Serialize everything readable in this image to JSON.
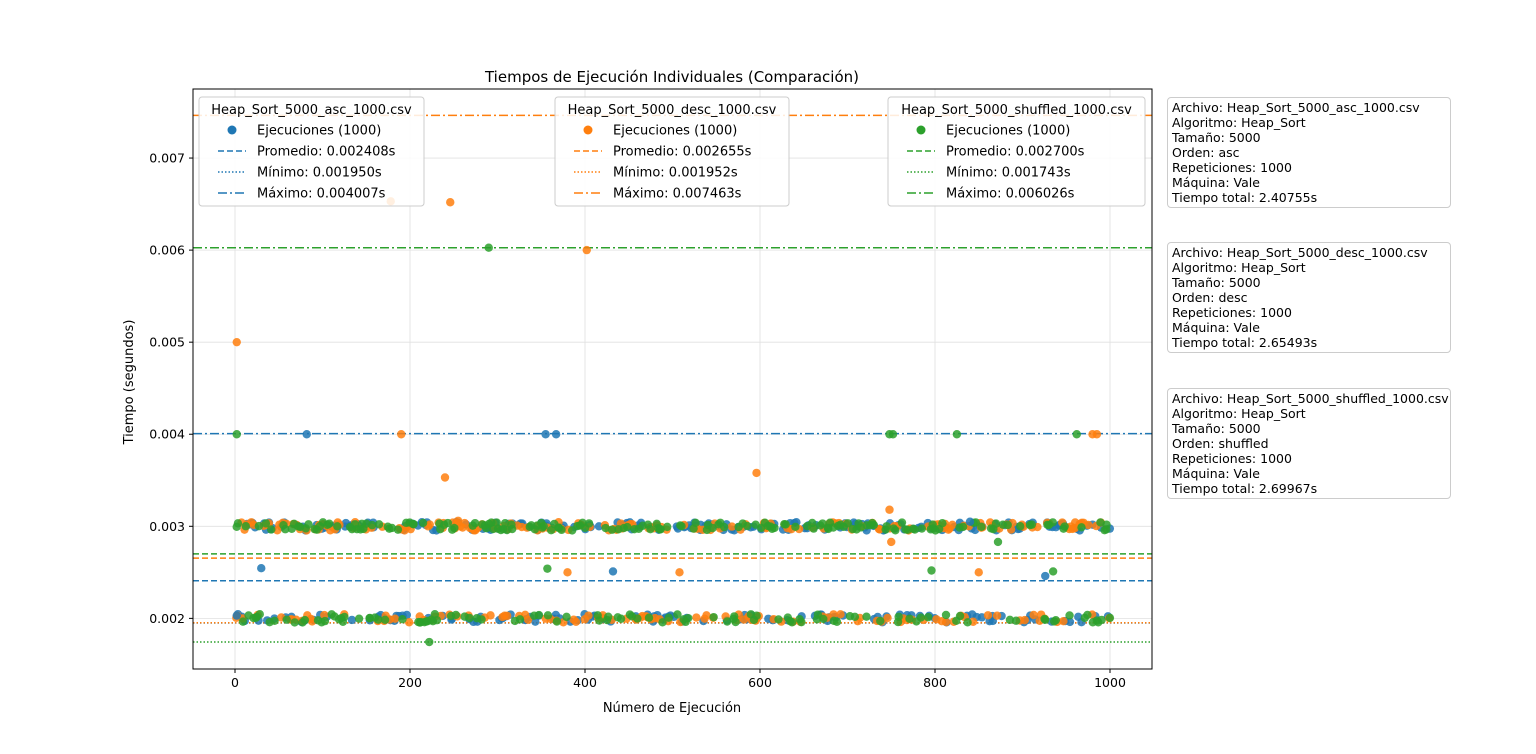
{
  "chart_data": {
    "type": "scatter",
    "title": "Tiempos de Ejecución Individuales (Comparación)",
    "xlabel": "Número de Ejecución",
    "ylabel": "Tiempo (segundos)",
    "xlim": [
      -48,
      1048
    ],
    "ylim": [
      0.00145,
      0.00775
    ],
    "xticks": [
      "0",
      "200",
      "400",
      "600",
      "800",
      "1000"
    ],
    "yticks": [
      "0.002",
      "0.003",
      "0.004",
      "0.005",
      "0.006",
      "0.007"
    ],
    "grid": true,
    "series": [
      {
        "legend_title": "Heap_Sort_5000_asc_1000.csv",
        "color": "#1f77b4",
        "points_label": "Ejecuciones (1000)",
        "mean_label": "Promedio: 0.002408s",
        "min_label": "Mínimo: 0.001950s",
        "max_label": "Máximo: 0.004007s",
        "mean": 0.002408,
        "min": 0.00195,
        "max": 0.004007,
        "outliers": [
          [
            2,
            0.00203
          ],
          [
            30,
            0.002545
          ],
          [
            82,
            0.004
          ],
          [
            355,
            0.004
          ],
          [
            367,
            0.004
          ],
          [
            432,
            0.00251
          ],
          [
            926,
            0.00246
          ],
          [
            840,
            0.00305
          ]
        ]
      },
      {
        "legend_title": "Heap_Sort_5000_desc_1000.csv",
        "color": "#ff7f0e",
        "points_label": "Ejecuciones (1000)",
        "mean_label": "Promedio: 0.002655s",
        "min_label": "Mínimo: 0.001952s",
        "max_label": "Máximo: 0.007463s",
        "mean": 0.002655,
        "min": 0.001952,
        "max": 0.007463,
        "outliers": [
          [
            2,
            0.005
          ],
          [
            178,
            0.00653
          ],
          [
            190,
            0.004
          ],
          [
            240,
            0.00353
          ],
          [
            246,
            0.00652
          ],
          [
            380,
            0.0025
          ],
          [
            402,
            0.006
          ],
          [
            508,
            0.0025
          ],
          [
            596,
            0.00358
          ],
          [
            748,
            0.00318
          ],
          [
            750,
            0.00283
          ],
          [
            850,
            0.0025
          ],
          [
            980,
            0.004
          ],
          [
            985,
            0.004
          ],
          [
            255,
            0.00306
          ]
        ]
      },
      {
        "legend_title": "Heap_Sort_5000_shuffled_1000.csv",
        "color": "#2ca02c",
        "points_label": "Ejecuciones (1000)",
        "mean_label": "Promedio: 0.002700s",
        "min_label": "Mínimo: 0.001743s",
        "max_label": "Máximo: 0.006026s",
        "mean": 0.0027,
        "min": 0.001743,
        "max": 0.006026,
        "outliers": [
          [
            2,
            0.004
          ],
          [
            222,
            0.001743
          ],
          [
            290,
            0.006026
          ],
          [
            357,
            0.00254
          ],
          [
            748,
            0.004
          ],
          [
            752,
            0.004
          ],
          [
            796,
            0.00252
          ],
          [
            825,
            0.004
          ],
          [
            872,
            0.00283
          ],
          [
            935,
            0.00251
          ],
          [
            962,
            0.004
          ]
        ]
      }
    ]
  },
  "info_boxes": [
    {
      "lines": [
        "Archivo: Heap_Sort_5000_asc_1000.csv",
        "Algoritmo: Heap_Sort",
        "Tamaño: 5000",
        "Orden: asc",
        "Repeticiones: 1000",
        "Máquina: Vale",
        "Tiempo total: 2.40755s"
      ]
    },
    {
      "lines": [
        "Archivo: Heap_Sort_5000_desc_1000.csv",
        "Algoritmo: Heap_Sort",
        "Tamaño: 5000",
        "Orden: desc",
        "Repeticiones: 1000",
        "Máquina: Vale",
        "Tiempo total: 2.65493s"
      ]
    },
    {
      "lines": [
        "Archivo: Heap_Sort_5000_shuffled_1000.csv",
        "Algoritmo: Heap_Sort",
        "Tamaño: 5000",
        "Orden: shuffled",
        "Repeticiones: 1000",
        "Máquina: Vale",
        "Tiempo total: 2.69967s"
      ]
    }
  ]
}
